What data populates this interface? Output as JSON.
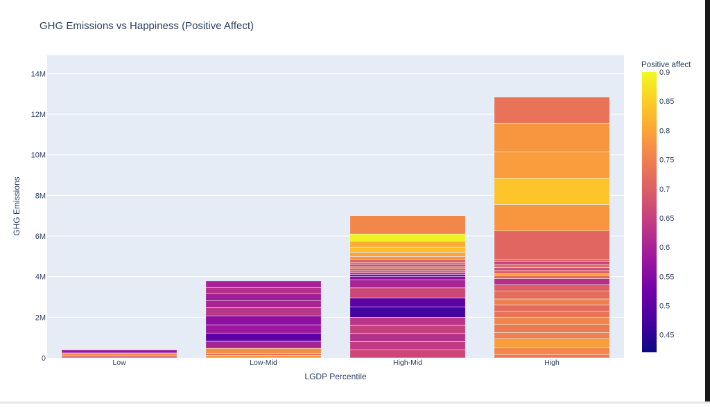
{
  "chart_data": {
    "type": "bar",
    "title": "GHG Emissions vs Happiness (Positive Affect)",
    "xlabel": "LGDP Percentile",
    "ylabel": "GHG Emissions",
    "categories": [
      "Low",
      "Low-Mid",
      "High-Mid",
      "High"
    ],
    "ylim": [
      0,
      14900000
    ],
    "yticks": [
      0,
      2000000,
      4000000,
      6000000,
      8000000,
      10000000,
      12000000,
      14000000
    ],
    "ytick_labels": [
      "0",
      "2M",
      "4M",
      "6M",
      "8M",
      "10M",
      "12M",
      "14M"
    ],
    "grid": true,
    "colorbar": {
      "title": "Positive affect",
      "range": [
        0.42,
        0.9
      ],
      "ticks": [
        0.45,
        0.5,
        0.55,
        0.6,
        0.65,
        0.7,
        0.75,
        0.8,
        0.85,
        0.9
      ],
      "tick_labels": [
        "0.45",
        "0.5",
        "0.55",
        "0.6",
        "0.65",
        "0.7",
        "0.75",
        "0.8",
        "0.85",
        "0.9"
      ],
      "colorscale": [
        "#0d0887",
        "#46039f",
        "#7201a8",
        "#9c179e",
        "#bd3786",
        "#d8576b",
        "#ed7953",
        "#fb9f3a",
        "#fdca26",
        "#f0f921"
      ]
    },
    "stacks": [
      {
        "category": "Low",
        "segments": [
          {
            "value": 100000,
            "affect": 0.7
          },
          {
            "value": 140000,
            "affect": 0.77
          },
          {
            "value": 150000,
            "affect": 0.58
          }
        ]
      },
      {
        "category": "Low-Mid",
        "segments": [
          {
            "value": 120000,
            "affect": 0.78
          },
          {
            "value": 100000,
            "affect": 0.72
          },
          {
            "value": 250000,
            "affect": 0.77
          },
          {
            "value": 350000,
            "affect": 0.6
          },
          {
            "value": 400000,
            "affect": 0.5
          },
          {
            "value": 400000,
            "affect": 0.58
          },
          {
            "value": 450000,
            "affect": 0.56
          },
          {
            "value": 400000,
            "affect": 0.63
          },
          {
            "value": 350000,
            "affect": 0.6
          },
          {
            "value": 350000,
            "affect": 0.59
          },
          {
            "value": 300000,
            "affect": 0.62
          },
          {
            "value": 320000,
            "affect": 0.6
          }
        ]
      },
      {
        "category": "High-Mid",
        "segments": [
          {
            "value": 400000,
            "affect": 0.66
          },
          {
            "value": 400000,
            "affect": 0.64
          },
          {
            "value": 400000,
            "affect": 0.62
          },
          {
            "value": 400000,
            "affect": 0.65
          },
          {
            "value": 400000,
            "affect": 0.63
          },
          {
            "value": 500000,
            "affect": 0.47
          },
          {
            "value": 450000,
            "affect": 0.5
          },
          {
            "value": 500000,
            "affect": 0.66
          },
          {
            "value": 400000,
            "affect": 0.6
          },
          {
            "value": 150000,
            "affect": 0.56
          },
          {
            "value": 100000,
            "affect": 0.53
          },
          {
            "value": 100000,
            "affect": 0.61
          },
          {
            "value": 100000,
            "affect": 0.7
          },
          {
            "value": 100000,
            "affect": 0.68
          },
          {
            "value": 100000,
            "affect": 0.75
          },
          {
            "value": 100000,
            "affect": 0.66
          },
          {
            "value": 100000,
            "affect": 0.72
          },
          {
            "value": 150000,
            "affect": 0.7
          },
          {
            "value": 150000,
            "affect": 0.78
          },
          {
            "value": 200000,
            "affect": 0.8
          },
          {
            "value": 250000,
            "affect": 0.83
          },
          {
            "value": 300000,
            "affect": 0.81
          },
          {
            "value": 350000,
            "affect": 0.89
          },
          {
            "value": 900000,
            "affect": 0.76
          }
        ]
      },
      {
        "category": "High",
        "segments": [
          {
            "value": 150000,
            "affect": 0.74
          },
          {
            "value": 350000,
            "affect": 0.76
          },
          {
            "value": 450000,
            "affect": 0.79
          },
          {
            "value": 300000,
            "affect": 0.75
          },
          {
            "value": 400000,
            "affect": 0.74
          },
          {
            "value": 350000,
            "affect": 0.76
          },
          {
            "value": 300000,
            "affect": 0.73
          },
          {
            "value": 300000,
            "affect": 0.72
          },
          {
            "value": 300000,
            "affect": 0.75
          },
          {
            "value": 400000,
            "affect": 0.72
          },
          {
            "value": 300000,
            "affect": 0.7
          },
          {
            "value": 300000,
            "affect": 0.62
          },
          {
            "value": 150000,
            "affect": 0.72
          },
          {
            "value": 100000,
            "affect": 0.8
          },
          {
            "value": 150000,
            "affect": 0.7
          },
          {
            "value": 150000,
            "affect": 0.67
          },
          {
            "value": 150000,
            "affect": 0.72
          },
          {
            "value": 150000,
            "affect": 0.65
          },
          {
            "value": 100000,
            "affect": 0.7
          },
          {
            "value": 1400000,
            "affect": 0.71
          },
          {
            "value": 1300000,
            "affect": 0.78
          },
          {
            "value": 1300000,
            "affect": 0.84
          },
          {
            "value": 1300000,
            "affect": 0.79
          },
          {
            "value": 1400000,
            "affect": 0.78
          },
          {
            "value": 1300000,
            "affect": 0.73
          }
        ]
      }
    ]
  }
}
